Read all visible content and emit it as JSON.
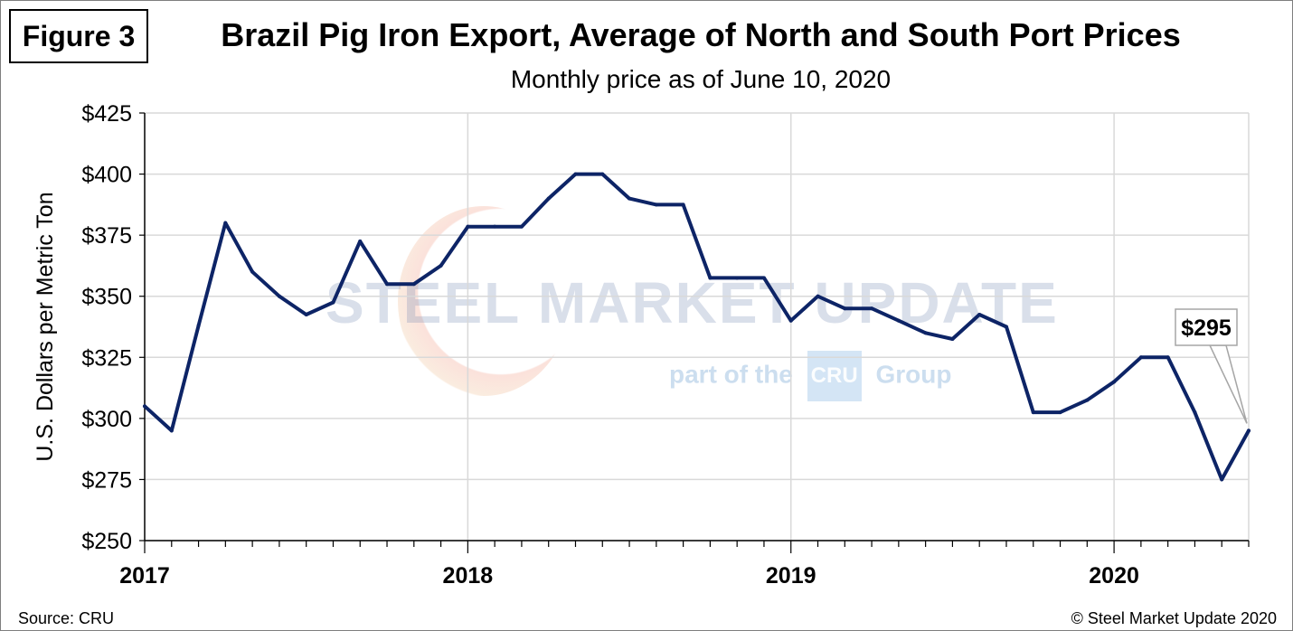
{
  "figure_label": "Figure 3",
  "source": "Source: CRU",
  "copyright": "© Steel Market Update 2020",
  "watermark": {
    "line1": "STEEL MARKET UPDATE",
    "part_prefix": "part of the",
    "cru": "CRU",
    "part_suffix": "Group"
  },
  "colors": {
    "line": "#0d2466",
    "grid": "#d9d9d9",
    "axis": "#000000"
  },
  "chart_data": {
    "type": "line",
    "title": "Brazil Pig Iron Export, Average of North and South Port Prices",
    "subtitle": "Monthly price as of June 10, 2020",
    "ylabel": "U.S. Dollars per Metric Ton",
    "xlabel": "",
    "ylim": [
      250,
      425
    ],
    "yticks": [
      250,
      275,
      300,
      325,
      350,
      375,
      400,
      425
    ],
    "ytick_labels": [
      "$250",
      "$275",
      "$300",
      "$325",
      "$350",
      "$375",
      "$400",
      "$425"
    ],
    "xlim": [
      "2017-01",
      "2020-06"
    ],
    "xtick_labels": [
      "2017",
      "2018",
      "2019",
      "2020"
    ],
    "x": [
      "2017-01",
      "2017-02",
      "2017-03",
      "2017-04",
      "2017-05",
      "2017-06",
      "2017-07",
      "2017-08",
      "2017-09",
      "2017-10",
      "2017-11",
      "2017-12",
      "2018-01",
      "2018-02",
      "2018-03",
      "2018-04",
      "2018-05",
      "2018-06",
      "2018-07",
      "2018-08",
      "2018-09",
      "2018-10",
      "2018-11",
      "2018-12",
      "2019-01",
      "2019-02",
      "2019-03",
      "2019-04",
      "2019-05",
      "2019-06",
      "2019-07",
      "2019-08",
      "2019-09",
      "2019-10",
      "2019-11",
      "2019-12",
      "2020-01",
      "2020-02",
      "2020-03",
      "2020-04",
      "2020-05",
      "2020-06"
    ],
    "series": [
      {
        "values": [
          305,
          295,
          338,
          380,
          360,
          350,
          342.5,
          347.5,
          372.5,
          355,
          355,
          362.5,
          378.5,
          378.5,
          378.5,
          390,
          400,
          400,
          390,
          387.5,
          387.5,
          357.5,
          357.5,
          357.5,
          340,
          350,
          345,
          345,
          340,
          335,
          332.5,
          342.5,
          337.5,
          302.5,
          302.5,
          307.5,
          315,
          325,
          325,
          302.5,
          275,
          295
        ]
      }
    ],
    "annotation": {
      "text": "$295",
      "x": "2020-06",
      "y": 295
    },
    "grid": true,
    "legend": "none"
  }
}
